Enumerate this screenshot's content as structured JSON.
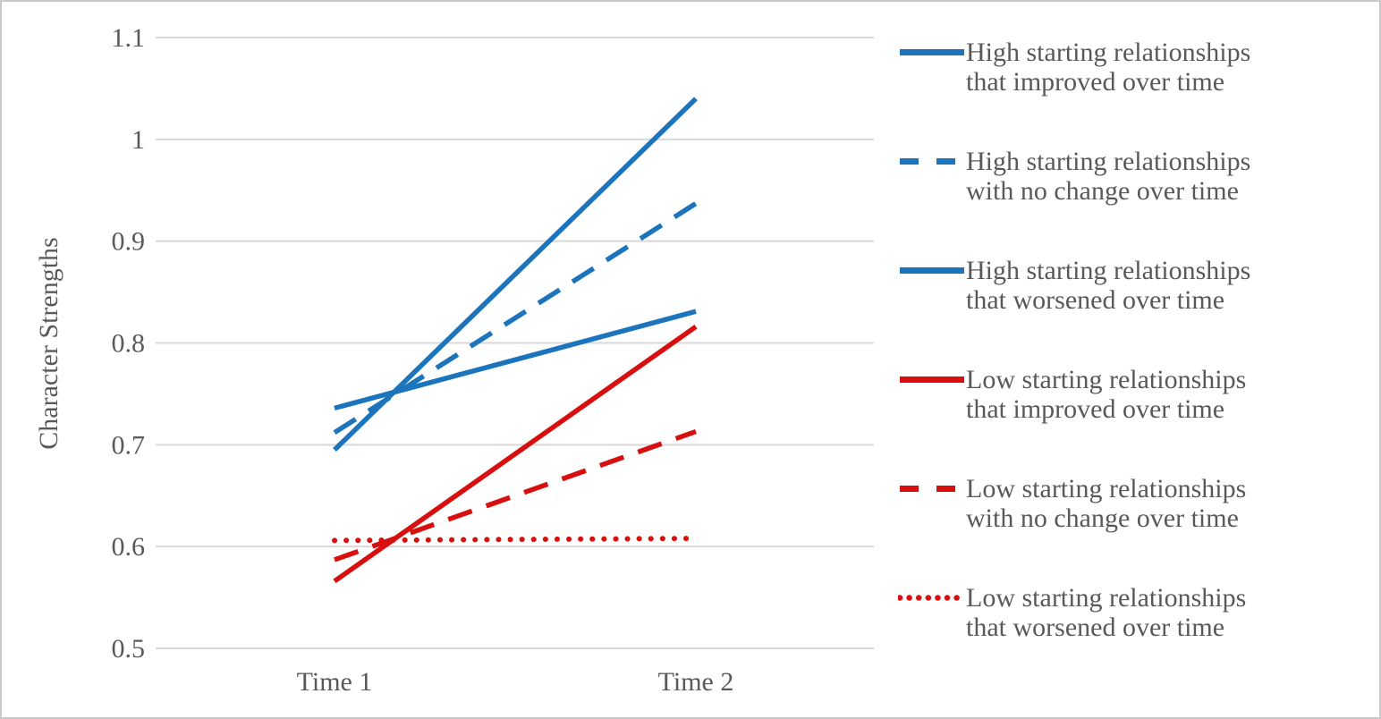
{
  "figure": {
    "background_color": "#ffffff",
    "border_color": "#c8c8c8"
  },
  "colors": {
    "high_series_blue": "#1b74bc",
    "low_series_red": "#d80f0f",
    "gridline_gray": "#d9d9d9",
    "text_gray": "#595959"
  },
  "chart_data": {
    "type": "line",
    "title": "",
    "xlabel": "",
    "ylabel": "Character Strengths",
    "categories": [
      "Time 1",
      "Time 2"
    ],
    "ylim": [
      0.5,
      1.1
    ],
    "y_ticks": [
      1.1,
      1.0,
      0.9,
      0.8,
      0.7,
      0.6,
      0.5
    ],
    "y_tick_labels": [
      "1.1",
      "1",
      "0.9",
      "0.8",
      "0.7",
      "0.6",
      "0.5"
    ],
    "grid": true,
    "legend_position": "right",
    "series": [
      {
        "name": "High starting relationships that improved over time",
        "label_lines": [
          "High starting relationships",
          "that improved over time"
        ],
        "color": "#1b74bc",
        "style": "solid",
        "values": [
          0.695,
          1.04
        ]
      },
      {
        "name": "High starting relationships with no change over time",
        "label_lines": [
          "High starting relationships",
          "with no change over time"
        ],
        "color": "#1b74bc",
        "style": "dashed",
        "values": [
          0.712,
          0.937
        ]
      },
      {
        "name": "High starting relationships that worsened over time",
        "label_lines": [
          "High starting relationships",
          "that worsened over time"
        ],
        "color": "#1b74bc",
        "style": "solid",
        "values": [
          0.736,
          0.831
        ]
      },
      {
        "name": "Low starting relationships that improved over time",
        "label_lines": [
          "Low starting relationships",
          "that improved over time"
        ],
        "color": "#d80f0f",
        "style": "solid",
        "values": [
          0.566,
          0.816
        ]
      },
      {
        "name": "Low starting relationships with no change over time",
        "label_lines": [
          "Low starting relationships",
          "with no change over time"
        ],
        "color": "#d80f0f",
        "style": "dashed",
        "values": [
          0.587,
          0.713
        ]
      },
      {
        "name": "Low starting relationships that worsened over time",
        "label_lines": [
          "Low starting relationships",
          "that worsened over time"
        ],
        "color": "#d80f0f",
        "style": "dotted",
        "values": [
          0.606,
          0.608
        ]
      }
    ]
  }
}
